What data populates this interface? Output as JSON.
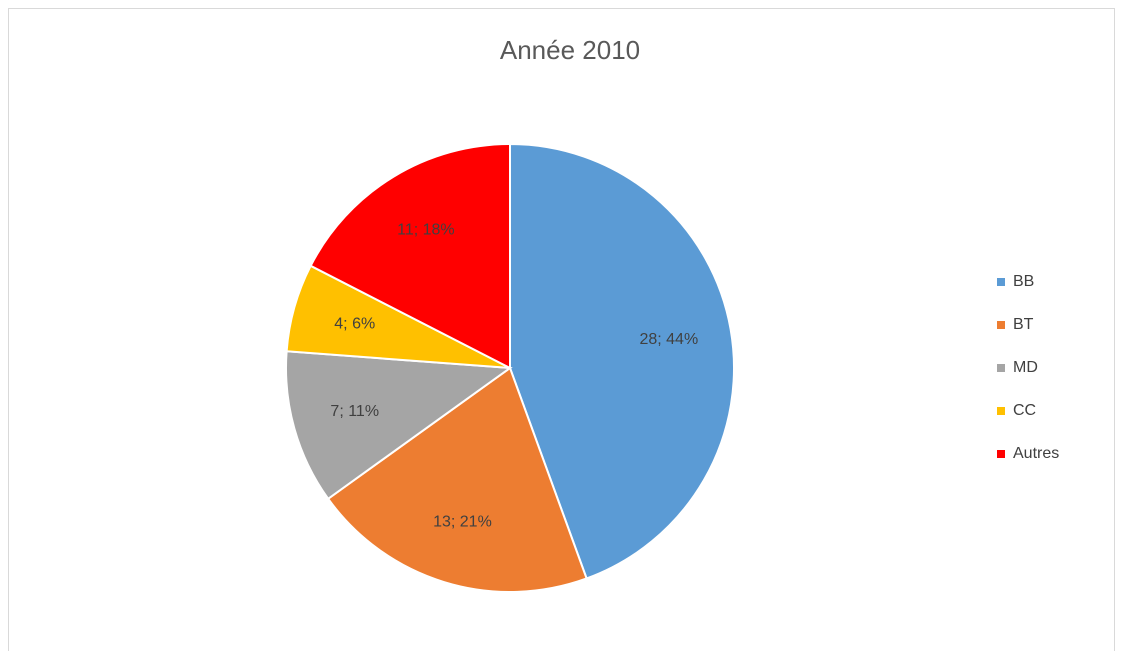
{
  "chart_data": {
    "type": "pie",
    "title": "Année 2010",
    "categories": [
      "BB",
      "BT",
      "MD",
      "CC",
      "Autres"
    ],
    "values": [
      28,
      13,
      7,
      4,
      11
    ],
    "value_labels": [
      "28; 44%",
      "13; 21%",
      "7; 11%",
      "4; 6%",
      "11; 18%"
    ],
    "colors": [
      "#5b9bd5",
      "#ed7d31",
      "#a5a5a5",
      "#ffc000",
      "#ff0000"
    ],
    "legend": "right"
  }
}
